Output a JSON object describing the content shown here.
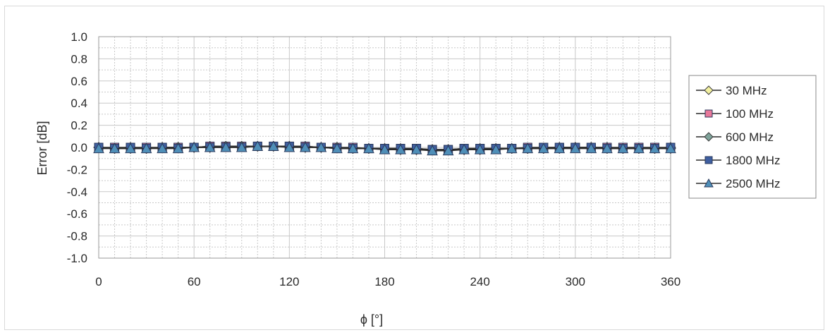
{
  "chart_data": {
    "type": "line",
    "title": "",
    "xlabel": "ϕ [°]",
    "ylabel": "Error [dB]",
    "xlim": [
      0,
      360
    ],
    "ylim": [
      -1.0,
      1.0
    ],
    "x_ticks": [
      "0",
      "60",
      "120",
      "180",
      "240",
      "300",
      "360"
    ],
    "y_ticks": [
      "1.0",
      "0.8",
      "0.6",
      "0.4",
      "0.2",
      "0.0",
      "-0.2",
      "-0.4",
      "-0.6",
      "-0.8",
      "-1.0"
    ],
    "grid": true,
    "legend_position": "right",
    "x": [
      0,
      10,
      20,
      30,
      40,
      50,
      60,
      70,
      80,
      90,
      100,
      110,
      120,
      130,
      140,
      150,
      160,
      170,
      180,
      190,
      200,
      210,
      220,
      230,
      240,
      250,
      260,
      270,
      280,
      290,
      300,
      310,
      320,
      330,
      340,
      350,
      360
    ],
    "series": [
      {
        "name": "30 MHz",
        "marker": "diamond",
        "color": "#f2f0a0",
        "values": [
          0.0,
          -0.01,
          0.0,
          -0.01,
          0.0,
          0.0,
          0.0,
          0.01,
          0.01,
          0.01,
          0.01,
          0.01,
          0.01,
          0.01,
          0.0,
          0.0,
          -0.01,
          -0.01,
          -0.01,
          -0.01,
          -0.02,
          -0.02,
          -0.02,
          -0.02,
          -0.01,
          -0.01,
          -0.01,
          -0.01,
          -0.01,
          0.0,
          0.0,
          0.0,
          0.0,
          -0.01,
          -0.01,
          -0.01,
          0.0
        ]
      },
      {
        "name": "100 MHz",
        "marker": "square",
        "color": "#e8789a",
        "values": [
          0.0,
          0.0,
          0.0,
          0.0,
          0.0,
          0.0,
          0.0,
          0.01,
          0.01,
          0.01,
          0.01,
          0.01,
          0.01,
          0.01,
          0.0,
          0.0,
          0.0,
          -0.01,
          -0.01,
          -0.01,
          -0.01,
          -0.02,
          -0.02,
          -0.01,
          -0.01,
          -0.01,
          -0.01,
          0.0,
          0.0,
          0.0,
          0.0,
          0.0,
          0.0,
          0.0,
          0.0,
          0.0,
          0.0
        ]
      },
      {
        "name": "600 MHz",
        "marker": "diamond",
        "color": "#7fa39a",
        "values": [
          0.0,
          -0.01,
          -0.01,
          -0.01,
          0.0,
          0.0,
          0.0,
          0.0,
          0.01,
          0.01,
          0.01,
          0.01,
          0.01,
          0.0,
          0.0,
          0.0,
          -0.01,
          -0.01,
          -0.01,
          -0.02,
          -0.02,
          -0.02,
          -0.02,
          -0.02,
          -0.02,
          -0.01,
          -0.01,
          -0.01,
          -0.01,
          -0.01,
          0.0,
          0.0,
          -0.01,
          -0.01,
          -0.01,
          -0.01,
          -0.01
        ]
      },
      {
        "name": "1800 MHz",
        "marker": "square",
        "color": "#3f5fa0",
        "values": [
          0.0,
          -0.01,
          0.0,
          -0.01,
          0.0,
          -0.01,
          0.0,
          0.0,
          0.0,
          0.0,
          0.01,
          0.01,
          0.01,
          0.0,
          0.0,
          -0.01,
          -0.01,
          -0.01,
          -0.01,
          -0.01,
          -0.01,
          -0.02,
          -0.02,
          -0.01,
          -0.01,
          -0.01,
          -0.01,
          -0.01,
          0.0,
          0.0,
          0.0,
          0.0,
          -0.01,
          -0.01,
          -0.01,
          -0.01,
          0.0
        ]
      },
      {
        "name": "2500 MHz",
        "marker": "triangle",
        "color": "#4f8fb8",
        "values": [
          -0.01,
          -0.01,
          -0.01,
          -0.01,
          -0.01,
          -0.01,
          0.0,
          0.0,
          0.0,
          0.0,
          0.01,
          0.01,
          0.0,
          0.0,
          0.0,
          -0.01,
          -0.01,
          -0.01,
          -0.02,
          -0.02,
          -0.02,
          -0.03,
          -0.03,
          -0.02,
          -0.02,
          -0.02,
          -0.01,
          -0.01,
          -0.01,
          -0.01,
          -0.01,
          -0.01,
          -0.01,
          -0.01,
          -0.01,
          -0.01,
          -0.01
        ]
      }
    ]
  }
}
